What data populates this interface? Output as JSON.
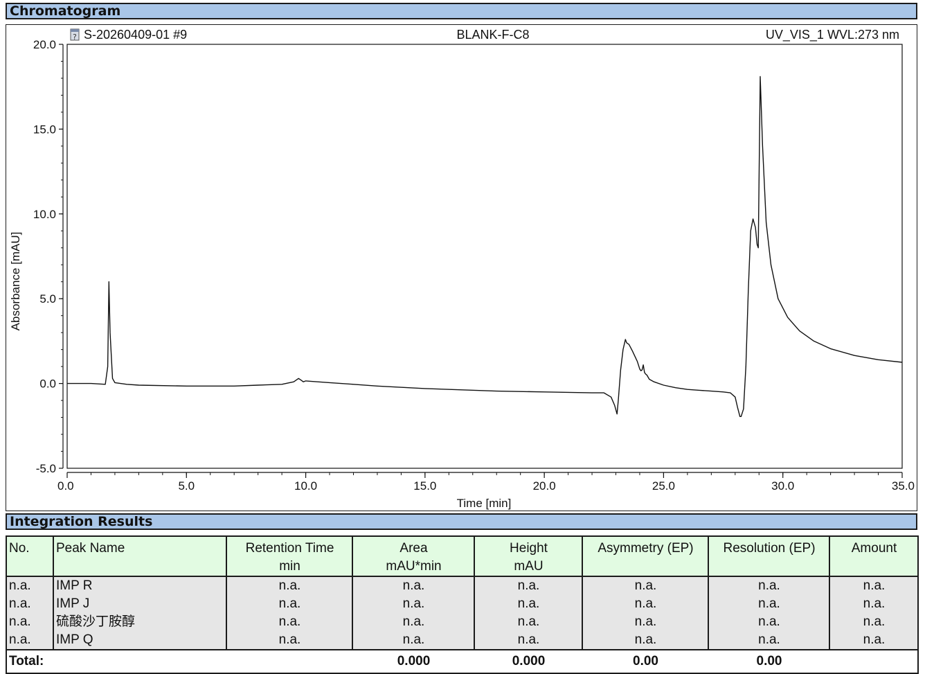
{
  "chromatogram": {
    "section_title": "Chromatogram",
    "sample_id": "S-20260409-01 #9",
    "sample_name": "BLANK-F-C8",
    "channel": "UV_VIS_1 WVL:273 nm",
    "sample_icon": "question-document-icon"
  },
  "chart_data": {
    "type": "line",
    "xlabel": "Time [min]",
    "ylabel": "Absorbance [mAU]",
    "xlim": [
      0,
      35
    ],
    "ylim": [
      -5,
      20
    ],
    "x_ticks": [
      "0.0",
      "5.0",
      "10.0",
      "15.0",
      "20.0",
      "25.0",
      "30.0",
      "35.0"
    ],
    "y_ticks": [
      "-5.0",
      "0.0",
      "5.0",
      "10.0",
      "15.0",
      "20.0"
    ],
    "grid": false,
    "line_color": "#111111",
    "series": [
      {
        "x": [
          0,
          1.0,
          1.6,
          1.7,
          1.75,
          1.8,
          1.9,
          2.0,
          2.5,
          3.0,
          5.0,
          7.0,
          8.0,
          9.0,
          9.5,
          9.7,
          9.8,
          9.9,
          10.0,
          10.5,
          11.0,
          12.0,
          13.0,
          15.0,
          18.0,
          20.0,
          22.0,
          22.5,
          22.8,
          22.95,
          23.05,
          23.1,
          23.2,
          23.3,
          23.4,
          23.45,
          23.55,
          23.7,
          23.9,
          24.0,
          24.05,
          24.1,
          24.15,
          24.2,
          24.25,
          24.3,
          24.4,
          24.6,
          25.0,
          25.5,
          26.0,
          26.5,
          27.0,
          27.5,
          27.8,
          28.0,
          28.1,
          28.2,
          28.25,
          28.35,
          28.45,
          28.55,
          28.65,
          28.75,
          28.85,
          28.92,
          28.97,
          29.0,
          29.05,
          29.15,
          29.3,
          29.5,
          29.8,
          30.2,
          30.7,
          31.3,
          32.0,
          33.0,
          34.0,
          35.0
        ],
        "y": [
          0.0,
          0.0,
          -0.05,
          1.0,
          6.0,
          3.0,
          0.3,
          0.05,
          -0.05,
          -0.1,
          -0.15,
          -0.15,
          -0.1,
          -0.05,
          0.1,
          0.3,
          0.2,
          0.1,
          0.15,
          0.1,
          0.05,
          -0.05,
          -0.15,
          -0.3,
          -0.45,
          -0.5,
          -0.55,
          -0.55,
          -0.8,
          -1.3,
          -1.8,
          -1.0,
          0.8,
          2.0,
          2.6,
          2.4,
          2.3,
          1.9,
          1.3,
          0.85,
          0.75,
          0.8,
          1.1,
          0.65,
          0.55,
          0.5,
          0.25,
          0.1,
          -0.1,
          -0.25,
          -0.35,
          -0.4,
          -0.45,
          -0.5,
          -0.55,
          -0.8,
          -1.4,
          -1.95,
          -1.95,
          -1.5,
          1.0,
          5.5,
          9.0,
          9.7,
          9.2,
          8.2,
          8.0,
          12.0,
          18.1,
          14.0,
          9.5,
          7.0,
          5.0,
          3.9,
          3.1,
          2.5,
          2.05,
          1.65,
          1.4,
          1.25
        ]
      }
    ]
  },
  "integration": {
    "section_title": "Integration Results",
    "columns": [
      {
        "label": "No.",
        "unit": ""
      },
      {
        "label": "Peak Name",
        "unit": ""
      },
      {
        "label": "Retention Time",
        "unit": "min"
      },
      {
        "label": "Area",
        "unit": "mAU*min"
      },
      {
        "label": "Height",
        "unit": "mAU"
      },
      {
        "label": "Asymmetry (EP)",
        "unit": ""
      },
      {
        "label": "Resolution (EP)",
        "unit": ""
      },
      {
        "label": "Amount",
        "unit": ""
      }
    ],
    "rows": [
      [
        "n.a.",
        "IMP R",
        "n.a.",
        "n.a.",
        "n.a.",
        "n.a.",
        "n.a.",
        "n.a."
      ],
      [
        "n.a.",
        "IMP J",
        "n.a.",
        "n.a.",
        "n.a.",
        "n.a.",
        "n.a.",
        "n.a."
      ],
      [
        "n.a.",
        "硫酸沙丁胺醇",
        "n.a.",
        "n.a.",
        "n.a.",
        "n.a.",
        "n.a.",
        "n.a."
      ],
      [
        "n.a.",
        "IMP Q",
        "n.a.",
        "n.a.",
        "n.a.",
        "n.a.",
        "n.a.",
        "n.a."
      ]
    ],
    "total": {
      "label": "Total:",
      "area": "0.000",
      "height": "0.000",
      "asymmetry": "0.00",
      "resolution": "0.00"
    }
  }
}
